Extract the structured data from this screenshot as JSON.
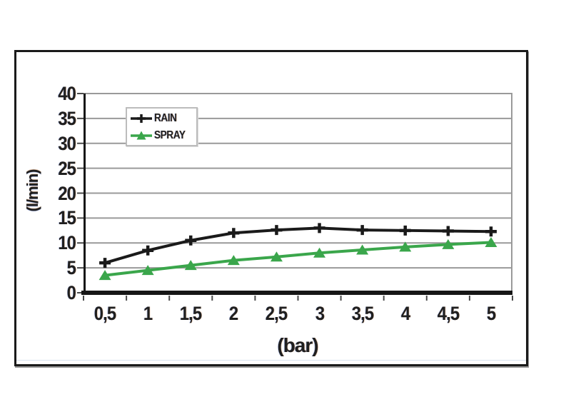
{
  "chart_data": {
    "type": "line",
    "title": "",
    "xlabel": "(bar)",
    "ylabel": "(l/min)",
    "x": [
      0.5,
      1,
      1.5,
      2,
      2.5,
      3,
      3.5,
      4,
      4.5,
      5
    ],
    "x_tick_labels": [
      "0,5",
      "1",
      "1,5",
      "2",
      "2,5",
      "3",
      "3,5",
      "4",
      "4,5",
      "5"
    ],
    "ylim": [
      0,
      40
    ],
    "y_tick_step": 5,
    "y_tick_labels": [
      "0",
      "5",
      "10",
      "15",
      "20",
      "25",
      "30",
      "35",
      "40"
    ],
    "grid": true,
    "legend_position": "top-left-inside",
    "series": [
      {
        "name": "RAIN",
        "color": "#1a1a1a",
        "marker": "plus",
        "values": [
          6,
          8.5,
          10.5,
          12,
          12.6,
          13,
          12.6,
          12.5,
          12.4,
          12.3
        ]
      },
      {
        "name": "SPRAY",
        "color": "#3aa64b",
        "marker": "triangle-up",
        "values": [
          3.5,
          4.5,
          5.5,
          6.5,
          7.2,
          8,
          8.6,
          9.2,
          9.7,
          10.1
        ]
      }
    ]
  },
  "colors": {
    "grid": "#9a9a9a",
    "axis": "#161616",
    "tick": "#4a4a4a",
    "text": "#1f1f1f",
    "legend_border": "#bcbcbc",
    "frame_border": "#1a1a1a",
    "background": "#ffffff"
  }
}
